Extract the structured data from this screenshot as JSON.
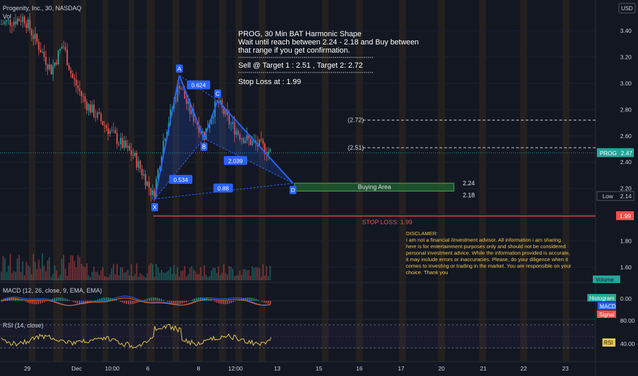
{
  "header": {
    "symbol_line": "Progenity, Inc., 30, NASDAQ",
    "volume_label": "Vol",
    "currency": "USD"
  },
  "chart_data": {
    "type": "candlestick",
    "ylim": [
      1.5,
      3.55
    ],
    "y_ticks": [
      "3.40",
      "3.20",
      "3.00",
      "2.80",
      "2.60",
      "2.40",
      "2.20",
      "2.00",
      "1.80",
      "1.60"
    ],
    "x_ticks": [
      "29",
      "Dec",
      "10:00",
      "6",
      "8",
      "12:00",
      "13",
      "15",
      "16",
      "17",
      "20",
      "21",
      "22",
      "23"
    ],
    "price_badge": {
      "symbol": "PROG",
      "value": "2.47",
      "price": 2.47
    },
    "low_badge": {
      "label": "Low",
      "value": "2.14",
      "price": 2.14
    },
    "stop_badge": {
      "value": "1.99",
      "price": 1.99
    },
    "volume_badge": "Volume",
    "harmonic": {
      "points": [
        {
          "label": "X",
          "price": 2.12
        },
        {
          "label": "A",
          "price": 3.06
        },
        {
          "label": "B",
          "price": 2.58
        },
        {
          "label": "C",
          "price": 2.87
        },
        {
          "label": "D",
          "price": 2.24
        }
      ],
      "ratios": [
        {
          "text": "0.624"
        },
        {
          "text": "0.534"
        },
        {
          "text": "2.039"
        },
        {
          "text": "0.88"
        }
      ]
    },
    "targets": [
      {
        "label": "(2.72)",
        "price": 2.72
      },
      {
        "label": "(2.51)",
        "price": 2.51
      }
    ],
    "buy_zone": {
      "label": "Buying Area",
      "top": 2.24,
      "bottom": 2.18,
      "top_label": "2.24",
      "bottom_label": "2.18"
    },
    "stop_loss": {
      "label": "STOP LOSS: 1.99",
      "price": 1.99
    },
    "note": {
      "line1": "PROG,  30 Min BAT Harmonic Shape",
      "line2": "Wait until reach between 2.24 - 2.18 and Buy between",
      "line3": "that range if you get confirmation.",
      "line4": "Sell @ Target 1 : 2.51 , Target 2: 2.72",
      "line5": "Stop Loss at : 1.99"
    },
    "disclaimer": {
      "title": "DISCLAMER:",
      "lines": [
        "I am not a financial /investment advisor. All information i am sharing",
        "here is for entertainment purposes only and should not be considered",
        "personal investment advice. While the information provided is accurate,",
        "it may include errors or inaccuracies. Please, do your diligence when it",
        "comes to investing or trading in the market. You are responsible on your",
        "choice. Thank you"
      ]
    },
    "macd": {
      "label": "MACD (12, 26, close, 9, EMA, EMA)",
      "tick": "0.00",
      "badges": [
        "Histogram",
        "MACD",
        "Signal"
      ]
    },
    "rsi": {
      "label": "RSI (14, close)",
      "ticks": [
        "80.00",
        "40.00"
      ],
      "badge": "RSI"
    }
  }
}
